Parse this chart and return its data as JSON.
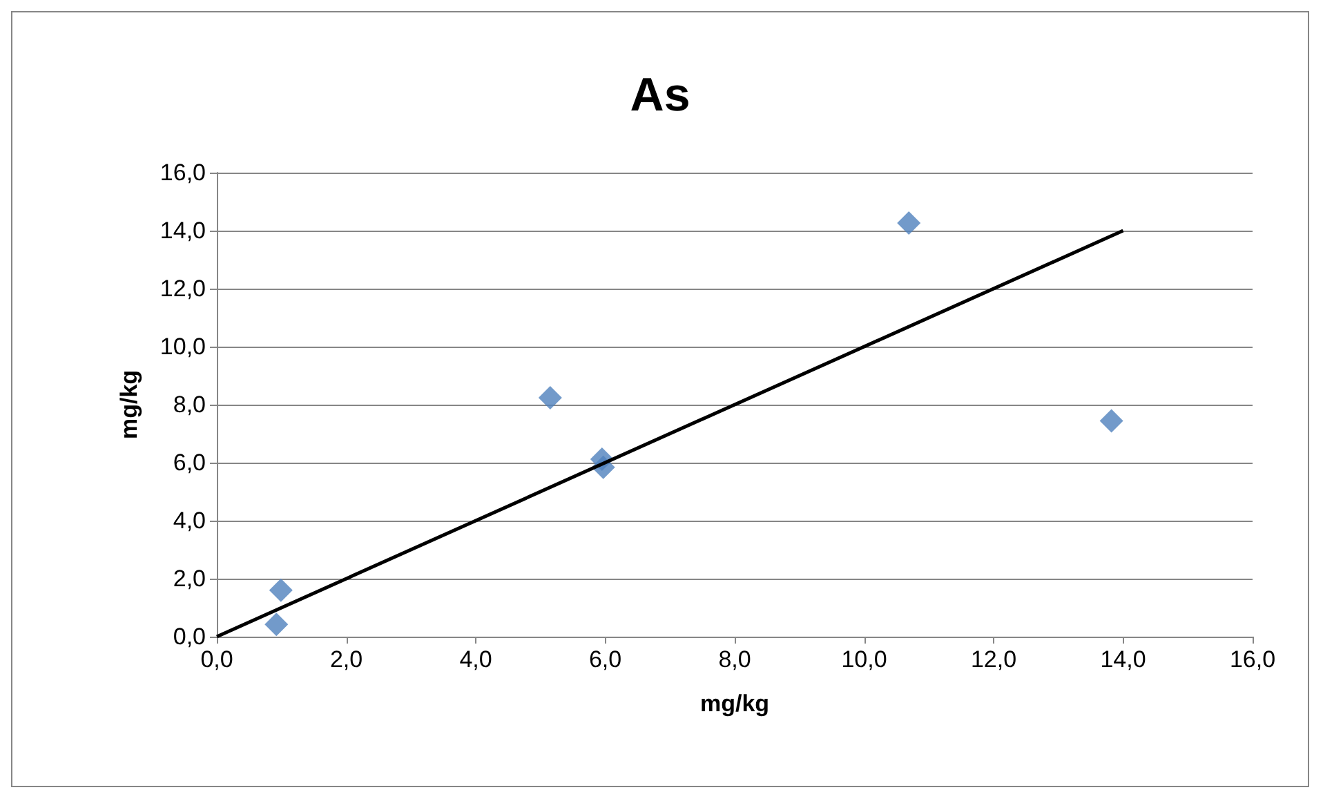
{
  "chart_data": {
    "type": "scatter",
    "title": "As",
    "xlabel": "mg/kg",
    "ylabel": "mg/kg",
    "xlim": [
      0,
      16
    ],
    "ylim": [
      0,
      16
    ],
    "xticks": [
      {
        "value": 0,
        "label": "0,0"
      },
      {
        "value": 2,
        "label": "2,0"
      },
      {
        "value": 4,
        "label": "4,0"
      },
      {
        "value": 6,
        "label": "6,0"
      },
      {
        "value": 8,
        "label": "8,0"
      },
      {
        "value": 10,
        "label": "10,0"
      },
      {
        "value": 12,
        "label": "12,0"
      },
      {
        "value": 14,
        "label": "14,0"
      },
      {
        "value": 16,
        "label": "16,0"
      }
    ],
    "yticks": [
      {
        "value": 0,
        "label": "0,0"
      },
      {
        "value": 2,
        "label": "2,0"
      },
      {
        "value": 4,
        "label": "4,0"
      },
      {
        "value": 6,
        "label": "6,0"
      },
      {
        "value": 8,
        "label": "8,0"
      },
      {
        "value": 10,
        "label": "10,0"
      },
      {
        "value": 12,
        "label": "12,0"
      },
      {
        "value": 14,
        "label": "14,0"
      },
      {
        "value": 16,
        "label": "16,0"
      }
    ],
    "grid": "y",
    "marker": "diamond",
    "series": [
      {
        "color": "#4f81bd",
        "x": [
          0.92,
          0.99,
          5.15,
          5.95,
          5.97,
          10.69,
          13.82
        ],
        "values": [
          0.42,
          1.6,
          8.24,
          6.12,
          5.84,
          14.26,
          7.44
        ]
      },
      {
        "type": "line",
        "color": "#000000",
        "marker": "none",
        "line_style": "solid",
        "x": [
          0,
          14
        ],
        "values": [
          0,
          14
        ]
      }
    ]
  }
}
